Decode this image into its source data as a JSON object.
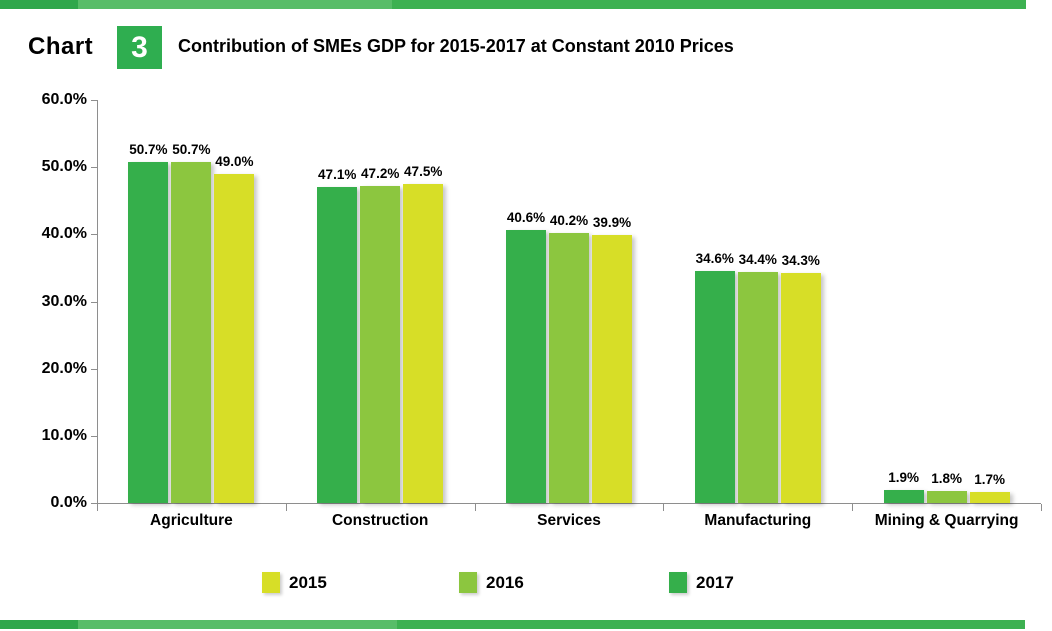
{
  "header": {
    "chart_word": "Chart",
    "chart_number": "3",
    "title": "Contribution of SMEs GDP for 2015-2017 at Constant 2010 Prices"
  },
  "colors": {
    "accent_green": "#2FAE50",
    "axis_gray": "#8E8E8E",
    "series_2017": "#35AF4B",
    "series_2016": "#8CC63F",
    "series_2015": "#D7DE27"
  },
  "chart_data": {
    "type": "bar",
    "title": "Contribution of SMEs GDP for 2015-2017 at Constant 2010 Prices",
    "categories": [
      "Agriculture",
      "Construction",
      "Services",
      "Manufacturing",
      "Mining & Quarrying"
    ],
    "series": [
      {
        "name": "2017",
        "color": "#35AF4B",
        "values": [
          50.7,
          47.1,
          40.6,
          34.6,
          1.9
        ]
      },
      {
        "name": "2016",
        "color": "#8CC63F",
        "values": [
          50.7,
          47.2,
          40.2,
          34.4,
          1.8
        ]
      },
      {
        "name": "2015",
        "color": "#D7DE27",
        "values": [
          49.0,
          47.5,
          39.9,
          34.3,
          1.7
        ]
      }
    ],
    "bar_order": "left-to-right within each group: 2017, 2016, 2015",
    "xlabel": "",
    "ylabel": "",
    "ylim": [
      0,
      60
    ],
    "ytick_step": 10,
    "ytick_labels": [
      "0.0%",
      "10.0%",
      "20.0%",
      "30.0%",
      "40.0%",
      "50.0%",
      "60.0%"
    ],
    "data_label_suffix": "%",
    "grid": false,
    "legend_position": "bottom",
    "legend": [
      {
        "label": "2015",
        "color": "#D7DE27"
      },
      {
        "label": "2016",
        "color": "#8CC63F"
      },
      {
        "label": "2017",
        "color": "#35AF4B"
      }
    ]
  }
}
